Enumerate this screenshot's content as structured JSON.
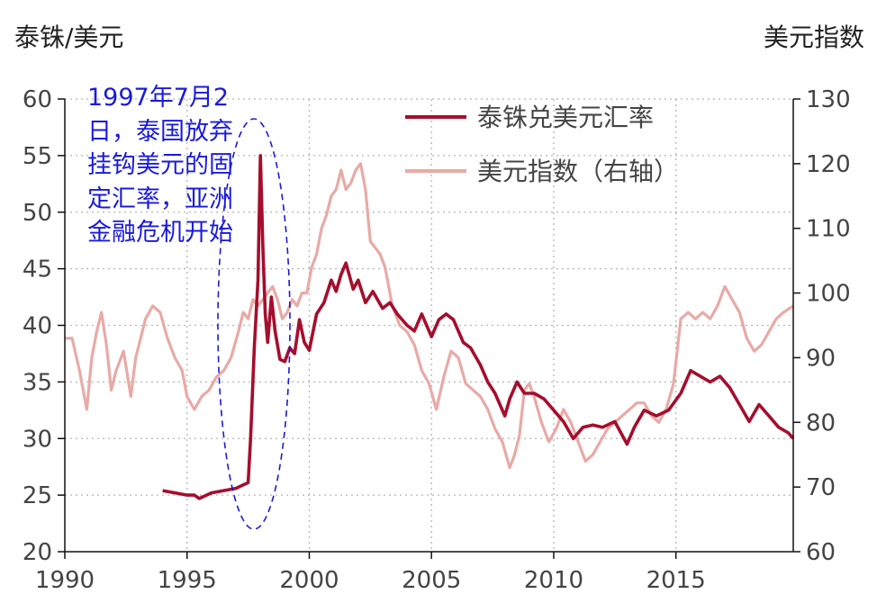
{
  "chart_data": {
    "type": "line",
    "ylabel_left": "泰铢/美元",
    "ylabel_right": "美元指数",
    "xlim": [
      1990,
      2019.8
    ],
    "ylim_left": [
      20,
      60
    ],
    "ylim_right": [
      60,
      130
    ],
    "x_ticks": [
      1990,
      1995,
      2000,
      2005,
      2010,
      2015
    ],
    "y_ticks_left": [
      20,
      25,
      30,
      35,
      40,
      45,
      50,
      55,
      60
    ],
    "y_ticks_right": [
      60,
      70,
      80,
      90,
      100,
      110,
      120,
      130
    ],
    "grid": true,
    "legend_position": "top-right",
    "annotation": "1997年7月2日，泰国放弃挂钩美元的固定汇率，亚洲金融危机开始",
    "series": [
      {
        "name": "泰铢兑美元汇率",
        "axis": "left",
        "color": "#a50e2d",
        "x": [
          1994.0,
          1994.5,
          1995.0,
          1995.3,
          1995.5,
          1996.0,
          1996.5,
          1997.0,
          1997.3,
          1997.5,
          1997.6,
          1997.75,
          1997.9,
          1998.0,
          1998.1,
          1998.2,
          1998.3,
          1998.45,
          1998.6,
          1998.8,
          1999.0,
          1999.2,
          1999.4,
          1999.6,
          1999.8,
          2000.0,
          2000.3,
          2000.6,
          2000.9,
          2001.1,
          2001.3,
          2001.5,
          2001.8,
          2002.0,
          2002.3,
          2002.6,
          2003.0,
          2003.3,
          2003.6,
          2004.0,
          2004.3,
          2004.6,
          2005.0,
          2005.3,
          2005.6,
          2005.9,
          2006.3,
          2006.6,
          2007.0,
          2007.3,
          2007.6,
          2008.0,
          2008.2,
          2008.5,
          2008.8,
          2009.2,
          2009.6,
          2010.0,
          2010.4,
          2010.8,
          2011.2,
          2011.6,
          2012.0,
          2012.5,
          2013.0,
          2013.3,
          2013.7,
          2014.2,
          2014.7,
          2015.2,
          2015.6,
          2016.0,
          2016.4,
          2016.8,
          2017.2,
          2017.6,
          2018.0,
          2018.4,
          2018.8,
          2019.2,
          2019.6,
          2019.8
        ],
        "values": [
          25.4,
          25.2,
          25.0,
          25.0,
          24.7,
          25.2,
          25.4,
          25.6,
          25.9,
          26.1,
          30.0,
          38.0,
          44.0,
          55.0,
          47.0,
          41.0,
          38.5,
          42.5,
          39.5,
          37.0,
          36.8,
          38.0,
          37.5,
          40.5,
          38.5,
          37.8,
          41.0,
          42.0,
          44.0,
          43.0,
          44.5,
          45.5,
          43.2,
          44.0,
          42.0,
          43.0,
          41.5,
          42.0,
          41.0,
          40.0,
          39.5,
          41.0,
          39.0,
          40.5,
          41.0,
          40.5,
          38.5,
          38.0,
          36.5,
          35.0,
          34.0,
          32.0,
          33.5,
          35.0,
          34.0,
          34.0,
          33.5,
          32.5,
          31.5,
          30.0,
          31.0,
          31.2,
          31.0,
          31.5,
          29.5,
          31.0,
          32.5,
          32.0,
          32.5,
          34.0,
          36.0,
          35.5,
          35.0,
          35.5,
          34.5,
          33.0,
          31.5,
          33.0,
          32.0,
          31.0,
          30.5,
          30.0
        ]
      },
      {
        "name": "美元指数（右轴）",
        "axis": "right",
        "color": "#e8aaa6",
        "x": [
          1990.0,
          1990.3,
          1990.6,
          1990.9,
          1991.1,
          1991.3,
          1991.5,
          1991.7,
          1991.9,
          1992.1,
          1992.4,
          1992.7,
          1992.9,
          1993.1,
          1993.3,
          1993.6,
          1993.9,
          1994.2,
          1994.5,
          1994.8,
          1995.0,
          1995.3,
          1995.6,
          1995.9,
          1996.2,
          1996.5,
          1996.8,
          1997.1,
          1997.3,
          1997.5,
          1997.7,
          1997.9,
          1998.1,
          1998.3,
          1998.5,
          1998.7,
          1998.9,
          1999.1,
          1999.3,
          1999.5,
          1999.7,
          1999.9,
          2000.1,
          2000.3,
          2000.5,
          2000.7,
          2000.9,
          2001.1,
          2001.3,
          2001.5,
          2001.7,
          2001.9,
          2002.1,
          2002.3,
          2002.5,
          2002.7,
          2002.9,
          2003.1,
          2003.4,
          2003.7,
          2004.0,
          2004.3,
          2004.6,
          2004.9,
          2005.2,
          2005.5,
          2005.8,
          2006.1,
          2006.4,
          2006.7,
          2007.0,
          2007.3,
          2007.6,
          2007.9,
          2008.2,
          2008.4,
          2008.6,
          2008.8,
          2009.0,
          2009.2,
          2009.5,
          2009.8,
          2010.1,
          2010.4,
          2010.7,
          2011.0,
          2011.3,
          2011.6,
          2011.9,
          2012.2,
          2012.5,
          2012.8,
          2013.1,
          2013.4,
          2013.7,
          2014.0,
          2014.3,
          2014.6,
          2014.9,
          2015.2,
          2015.5,
          2015.8,
          2016.1,
          2016.4,
          2016.7,
          2017.0,
          2017.3,
          2017.6,
          2017.9,
          2018.2,
          2018.5,
          2018.8,
          2019.1,
          2019.4,
          2019.8
        ],
        "values": [
          93,
          93,
          88,
          82,
          90,
          94,
          97,
          92,
          85,
          88,
          91,
          84,
          90,
          93,
          96,
          98,
          97,
          93,
          90,
          88,
          84,
          82,
          84,
          85,
          87,
          88,
          90,
          94,
          97,
          96,
          99,
          98,
          99,
          100,
          101,
          99,
          96,
          97,
          99,
          98,
          100,
          100,
          104,
          106,
          110,
          112,
          115,
          116,
          119,
          116,
          117,
          119,
          120,
          116,
          108,
          107,
          106,
          104,
          98,
          95,
          94,
          92,
          88,
          86,
          82,
          87,
          91,
          90,
          86,
          85,
          84,
          82,
          79,
          77,
          73,
          75,
          78,
          85,
          86,
          84,
          80,
          77,
          79,
          82,
          80,
          77,
          74,
          75,
          77,
          79,
          80,
          81,
          82,
          83,
          83,
          81,
          80,
          82,
          86,
          96,
          97,
          96,
          97,
          96,
          98,
          101,
          99,
          97,
          93,
          91,
          92,
          94,
          96,
          97,
          98
        ]
      }
    ]
  }
}
